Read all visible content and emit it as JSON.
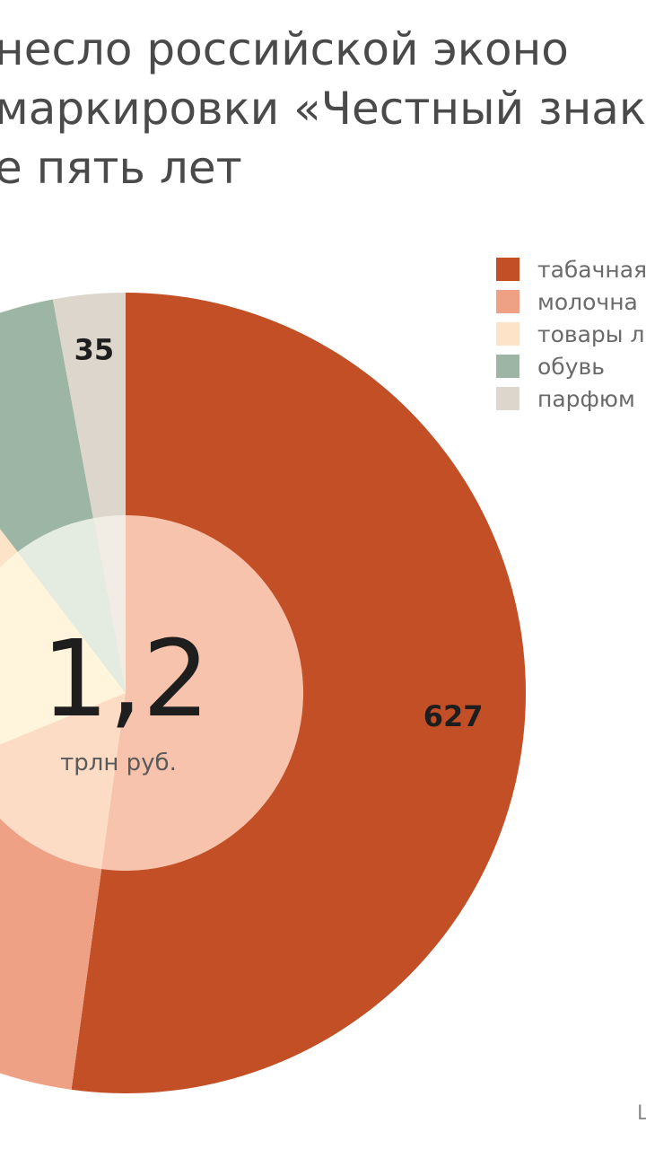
{
  "title": {
    "line1": "несло российской эконо",
    "line2": "маркировки «Честный знак",
    "line3": "е пять лет"
  },
  "center": {
    "value": "1,2",
    "unit": "трлн руб."
  },
  "colors": {
    "tobacco": "#c24f26",
    "dairy": "#eea184",
    "light_goods": "#fde3c8",
    "shoes": "#9db5a4",
    "perfume": "#ddd6cd",
    "inner_ring": "#f8c3ac"
  },
  "chart_data": {
    "type": "pie",
    "style": "donut-with-inner-disc",
    "center_label": "1,2",
    "center_unit": "трлн руб.",
    "slices": [
      {
        "label": "табачная",
        "value": 627,
        "value_label": "627",
        "color": "#c24f26"
      },
      {
        "label": "молочна",
        "value": 200,
        "value_label": "",
        "color": "#eea184"
      },
      {
        "label": "товары л",
        "value": 250,
        "value_label": "",
        "color": "#fde3c8"
      },
      {
        "label": "обувь",
        "value": 90,
        "value_label": "",
        "color": "#9db5a4"
      },
      {
        "label": "парфюм",
        "value": 35,
        "value_label": "35",
        "color": "#ddd6cd"
      }
    ],
    "legend": [
      "табачная",
      "молочна",
      "товары л",
      "обувь",
      "парфюм"
    ],
    "legend_position": "top-right"
  },
  "footer": {
    "corner_text": "Ш"
  }
}
